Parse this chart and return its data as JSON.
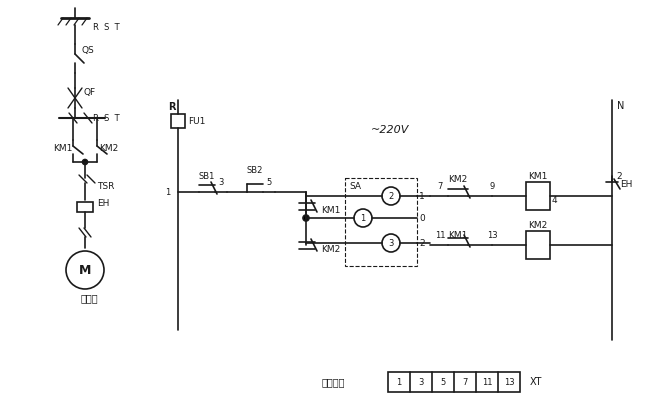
{
  "bg_color": "#ffffff",
  "line_color": "#1a1a1a",
  "text_color": "#1a1a1a",
  "figsize": [
    6.72,
    4.11
  ],
  "dpi": 100,
  "labels": {
    "RST_top": "R  S  T",
    "QS": "QS",
    "QF": "QF",
    "RST_mid": "R  S  T",
    "KM1_left": "KM1",
    "KM2_mid": "KM2",
    "TSR": "TSR",
    "EH_left": "EH",
    "M_label": "M",
    "main_circuit": "主电路",
    "R_label": "R",
    "FU1": "FU1",
    "SB1": "SB1",
    "SB2": "SB2",
    "KM1_ctrl": "KM1",
    "KM2_ctrl": "KM2",
    "SA": "SA",
    "tilde220V": "~220V",
    "N_label": "N",
    "KM2_top": "KM2",
    "KM1_box": "KM1",
    "EH_right": "EH",
    "KM1_bot": "KM1",
    "KM2_box": "KM2",
    "node1": "1",
    "node3": "3",
    "node5": "5",
    "node7": "7",
    "node9": "9",
    "node11": "11",
    "node13": "13",
    "node2": "2",
    "node4": "4",
    "circle1": "1",
    "circle2": "2",
    "circle3": "3",
    "pos0": "0",
    "pos1_sa": "1",
    "pos2_sa": "2",
    "XT": "XT",
    "ctrl_circuit": "控制电路",
    "xt_labels": [
      "1",
      "3",
      "5",
      "7",
      "11",
      "13"
    ]
  }
}
